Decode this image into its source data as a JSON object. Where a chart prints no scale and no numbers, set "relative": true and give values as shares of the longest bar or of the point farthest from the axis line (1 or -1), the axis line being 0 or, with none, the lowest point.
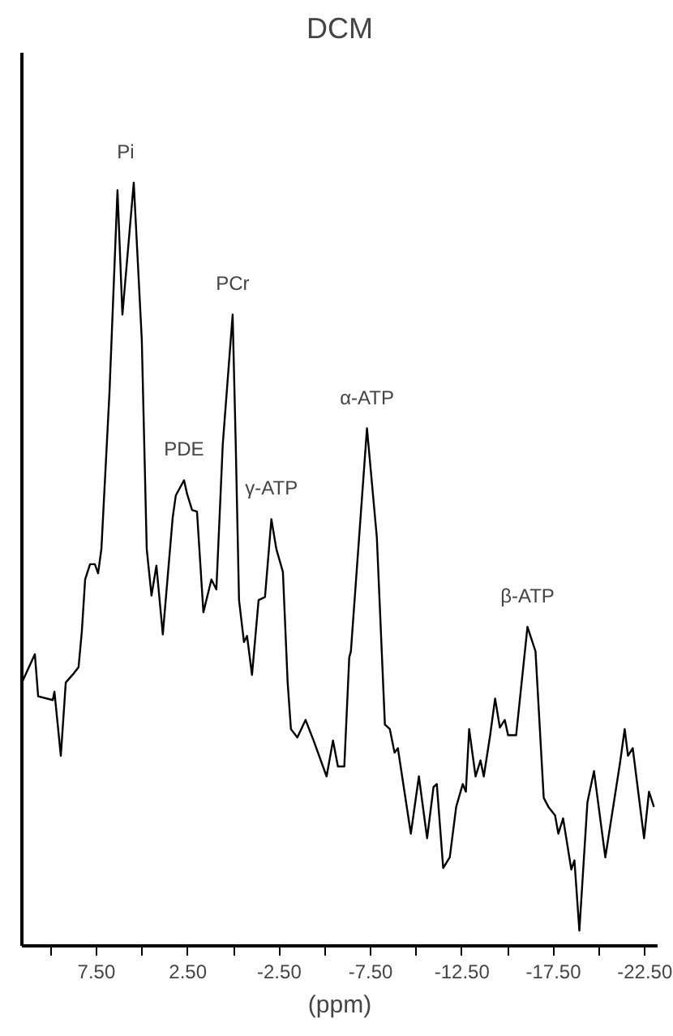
{
  "chart_data": {
    "type": "line",
    "title": "DCM",
    "xlabel": "(ppm)",
    "relative": true,
    "tick_labels": "x",
    "grid": false,
    "marker": "none",
    "line_style": "solid",
    "xlim": [
      11.58,
      -23.2
    ],
    "xticks": [
      {
        "value": 10,
        "label": null
      },
      {
        "value": 7.5,
        "label": "7.50"
      },
      {
        "value": 5,
        "label": null
      },
      {
        "value": 2.5,
        "label": "2.50"
      },
      {
        "value": 0,
        "label": null
      },
      {
        "value": -2.5,
        "label": "-2.50"
      },
      {
        "value": -5,
        "label": null
      },
      {
        "value": -7.5,
        "label": "-7.50"
      },
      {
        "value": -10,
        "label": null
      },
      {
        "value": -12.5,
        "label": "-12.50"
      },
      {
        "value": -15,
        "label": null
      },
      {
        "value": -17.5,
        "label": "-17.50"
      },
      {
        "value": -20,
        "label": null
      },
      {
        "value": -22.5,
        "label": "-22.50"
      }
    ],
    "x": [
      11.58,
      10.87,
      10.69,
      9.89,
      9.8,
      9.45,
      9.18,
      8.74,
      8.48,
      8.3,
      8.12,
      7.85,
      7.59,
      7.41,
      7.23,
      6.79,
      6.35,
      6.08,
      5.46,
      5.02,
      4.75,
      4.49,
      4.22,
      3.87,
      3.33,
      3.16,
      2.71,
      2.54,
      2.27,
      2.0,
      1.65,
      1.21,
      0.94,
      0.59,
      0.05,
      -0.12,
      -0.3,
      -0.57,
      -0.74,
      -1.01,
      -1.37,
      -1.72,
      -2.07,
      -2.34,
      -2.7,
      -2.96,
      -3.14,
      -3.49,
      -3.94,
      -4.38,
      -5.09,
      -5.44,
      -5.71,
      -6.06,
      -6.33,
      -6.42,
      -7.3,
      -7.84,
      -8.28,
      -8.55,
      -8.81,
      -8.99,
      -9.7,
      -10.14,
      -10.59,
      -10.94,
      -11.12,
      -11.47,
      -11.83,
      -12.18,
      -12.54,
      -12.71,
      -12.89,
      -13.24,
      -13.51,
      -13.69,
      -14.04,
      -14.31,
      -14.57,
      -14.84,
      -15.02,
      -15.46,
      -16.08,
      -16.52,
      -16.97,
      -17.23,
      -17.59,
      -17.77,
      -18.03,
      -18.48,
      -18.65,
      -18.92,
      -19.36,
      -19.72,
      -20.34,
      -21.14,
      -21.4,
      -21.58,
      -21.84,
      -22.46,
      -22.73,
      -23.0
    ],
    "series": [
      {
        "color": "#000000",
        "values": [
          0.345,
          0.382,
          0.327,
          0.322,
          0.333,
          0.249,
          0.345,
          0.357,
          0.365,
          0.412,
          0.48,
          0.5,
          0.5,
          0.488,
          0.52,
          0.724,
          0.99,
          0.827,
          1.0,
          0.794,
          0.52,
          0.459,
          0.498,
          0.408,
          0.561,
          0.59,
          0.61,
          0.592,
          0.571,
          0.569,
          0.437,
          0.48,
          0.467,
          0.657,
          0.827,
          0.657,
          0.453,
          0.398,
          0.406,
          0.355,
          0.453,
          0.457,
          0.559,
          0.52,
          0.49,
          0.345,
          0.284,
          0.273,
          0.296,
          0.269,
          0.222,
          0.269,
          0.235,
          0.235,
          0.378,
          0.386,
          0.678,
          0.535,
          0.29,
          0.284,
          0.253,
          0.259,
          0.147,
          0.222,
          0.141,
          0.208,
          0.212,
          0.102,
          0.116,
          0.182,
          0.212,
          0.202,
          0.284,
          0.222,
          0.243,
          0.222,
          0.276,
          0.324,
          0.286,
          0.296,
          0.276,
          0.276,
          0.418,
          0.386,
          0.194,
          0.182,
          0.171,
          0.147,
          0.167,
          0.1,
          0.112,
          0.02,
          0.188,
          0.229,
          0.116,
          0.239,
          0.284,
          0.249,
          0.259,
          0.141,
          0.202,
          0.182
        ]
      }
    ],
    "annotations": [
      {
        "text": "Pi",
        "x": 5.9,
        "y": 1.0
      },
      {
        "text": "PDE",
        "x": 2.71,
        "y": 0.61
      },
      {
        "text": "PCr",
        "x": 0.05,
        "y": 0.827
      },
      {
        "text": "γ-ATP",
        "x": -2.07,
        "y": 0.559
      },
      {
        "text": "α-ATP",
        "x": -7.3,
        "y": 0.678
      },
      {
        "text": "β-ATP",
        "x": -16.08,
        "y": 0.418
      }
    ]
  }
}
